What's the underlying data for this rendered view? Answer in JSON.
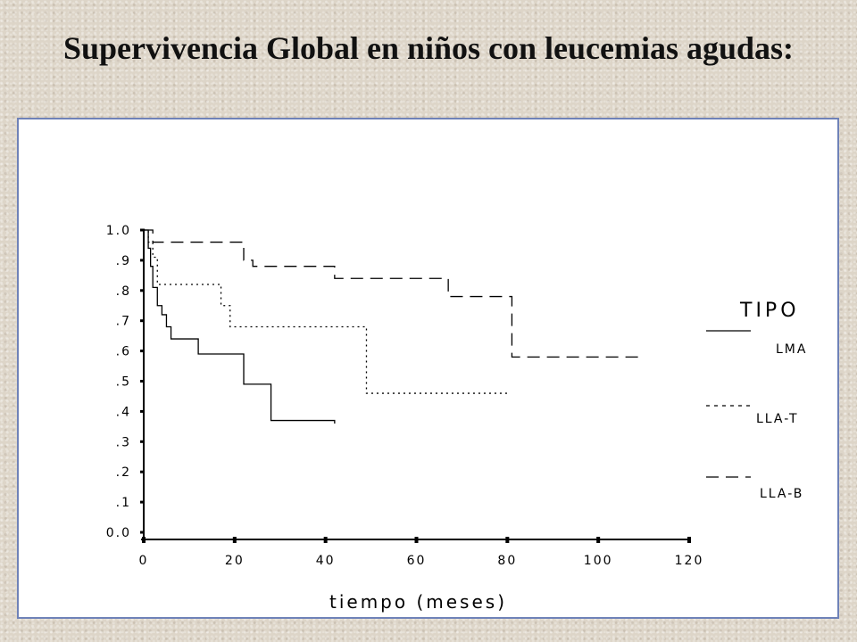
{
  "title": "Supervivencia Global en niños con leucemias agudas:",
  "chart_data": {
    "type": "line",
    "subtype": "kaplan-meier step",
    "xlabel": "tiempo (meses)",
    "ylabel": "",
    "xlim": [
      0,
      120
    ],
    "ylim": [
      0,
      1.0
    ],
    "xticks": [
      "0",
      "20",
      "40",
      "60",
      "80",
      "100",
      "120"
    ],
    "yticks": [
      "0.0",
      ".1",
      ".2",
      ".3",
      ".4",
      ".5",
      ".6",
      ".7",
      ".8",
      ".9",
      "1.0"
    ],
    "grid": false,
    "legend": {
      "title": "TIPO",
      "placement": "right",
      "entries": [
        "LMA",
        "LLA-T",
        "LLA-B"
      ]
    },
    "series": [
      {
        "name": "LMA",
        "style": "solid",
        "x": [
          0,
          1,
          1.5,
          2,
          3,
          4,
          5,
          6,
          12,
          22,
          28,
          42
        ],
        "y": [
          1.0,
          0.94,
          0.88,
          0.81,
          0.75,
          0.72,
          0.68,
          0.64,
          0.59,
          0.49,
          0.37,
          0.36
        ]
      },
      {
        "name": "LLA-T",
        "style": "dotted",
        "x": [
          0,
          1,
          2,
          3,
          17,
          19,
          49,
          80
        ],
        "y": [
          1.0,
          0.96,
          0.91,
          0.82,
          0.75,
          0.68,
          0.46,
          0.46
        ]
      },
      {
        "name": "LLA-B",
        "style": "dashed",
        "x": [
          0,
          2,
          22,
          24,
          42,
          67,
          81,
          110
        ],
        "y": [
          1.0,
          0.96,
          0.9,
          0.88,
          0.84,
          0.78,
          0.58,
          0.58
        ]
      }
    ]
  }
}
